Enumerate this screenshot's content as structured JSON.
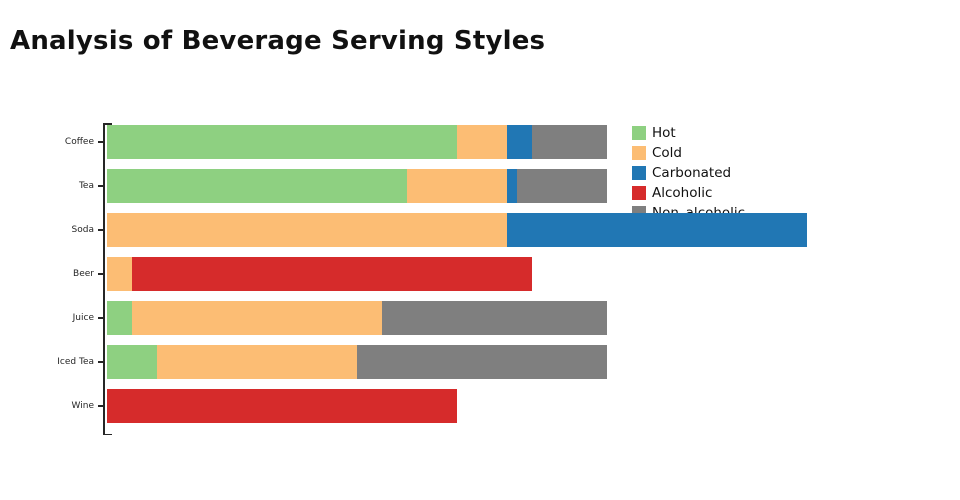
{
  "title": "Analysis of Beverage Serving Styles",
  "chart_data": {
    "type": "bar",
    "orientation": "horizontal",
    "stacked": true,
    "title": "Analysis of Beverage Serving Styles",
    "xlabel": "",
    "ylabel": "",
    "xlim": [
      0,
      160
    ],
    "grid": false,
    "legend_position": "top-right",
    "categories": [
      "Coffee",
      "Tea",
      "Soda",
      "Beer",
      "Juice",
      "Iced Tea",
      "Wine"
    ],
    "series": [
      {
        "name": "Hot",
        "color": "#8ed081",
        "values": [
          70,
          60,
          0,
          0,
          5,
          10,
          0
        ]
      },
      {
        "name": "Cold",
        "color": "#fcbd74",
        "values": [
          10,
          20,
          80,
          5,
          50,
          40,
          0
        ]
      },
      {
        "name": "Carbonated",
        "color": "#2177b4",
        "values": [
          5,
          2,
          60,
          0,
          0,
          0,
          0
        ]
      },
      {
        "name": "Alcoholic",
        "color": "#d62b2b",
        "values": [
          0,
          0,
          0,
          80,
          0,
          0,
          70
        ]
      },
      {
        "name": "Non_alcoholic",
        "color": "#7f7f7f",
        "values": [
          15,
          18,
          0,
          0,
          45,
          50,
          0
        ]
      }
    ]
  },
  "colors": {
    "axis": "#262626",
    "title_text": "#111111",
    "background": "#ffffff"
  }
}
